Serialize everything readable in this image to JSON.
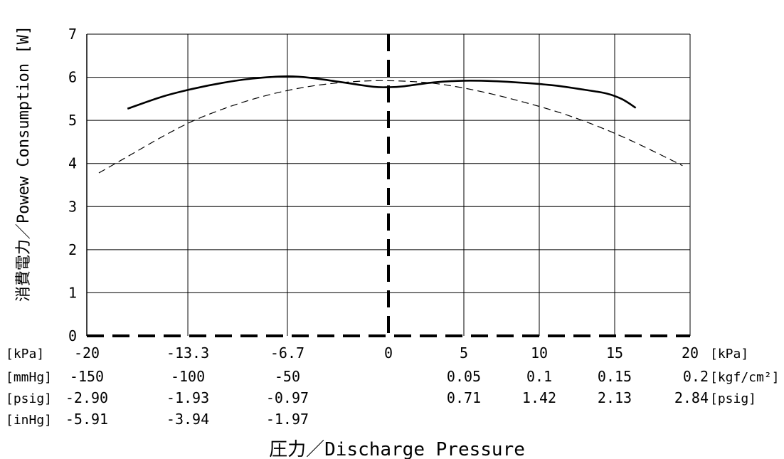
{
  "chart_data": {
    "type": "line",
    "title": "",
    "ylabel": "消費電力／Powew Consumption [W]",
    "xlabel": "圧力／Discharge Pressure",
    "ylim": [
      0,
      7
    ],
    "y_ticks": [
      "0",
      "1",
      "2",
      "3",
      "4",
      "5",
      "6",
      "7"
    ],
    "xlim": [
      -20,
      20
    ],
    "grid": true,
    "x_scales": [
      {
        "unit": "[kPa]",
        "ticks": [
          {
            "x": -20,
            "label": "-20"
          },
          {
            "x": -13.3,
            "label": "-13.3"
          },
          {
            "x": -6.7,
            "label": "-6.7"
          },
          {
            "x": 0,
            "label": "0"
          },
          {
            "x": 5,
            "label": "5"
          },
          {
            "x": 10,
            "label": "10"
          },
          {
            "x": 15,
            "label": "15"
          },
          {
            "x": 20,
            "label": "20"
          }
        ],
        "right_unit": "[kPa]"
      },
      {
        "unit": "[mmHg]",
        "ticks": [
          {
            "x": -20,
            "label": "-150"
          },
          {
            "x": -13.3,
            "label": "-100"
          },
          {
            "x": -6.7,
            "label": "-50"
          },
          {
            "x": 5,
            "label": "0.05"
          },
          {
            "x": 10,
            "label": "0.1"
          },
          {
            "x": 15,
            "label": "0.15"
          },
          {
            "x": 20,
            "label": "0.2"
          }
        ],
        "right_unit": "[kgf/cm²]"
      },
      {
        "unit": "[psig]",
        "ticks": [
          {
            "x": -20,
            "label": "-2.90"
          },
          {
            "x": -13.3,
            "label": "-1.93"
          },
          {
            "x": -6.7,
            "label": "-0.97"
          },
          {
            "x": 5,
            "label": "0.71"
          },
          {
            "x": 10,
            "label": "1.42"
          },
          {
            "x": 15,
            "label": "2.13"
          },
          {
            "x": 20,
            "label": "2.84"
          }
        ],
        "right_unit": "[psig]"
      },
      {
        "unit": "[inHg]",
        "ticks": [
          {
            "x": -20,
            "label": "-5.91"
          },
          {
            "x": -13.3,
            "label": "-3.94"
          },
          {
            "x": -6.7,
            "label": "-1.97"
          }
        ],
        "right_unit": ""
      }
    ],
    "series": [
      {
        "style": "solid",
        "color": "#000000",
        "points": [
          [
            -17.3,
            5.27
          ],
          [
            -15,
            5.55
          ],
          [
            -13,
            5.73
          ],
          [
            -11,
            5.87
          ],
          [
            -9,
            5.97
          ],
          [
            -6.7,
            6.02
          ],
          [
            -5,
            5.98
          ],
          [
            -3,
            5.88
          ],
          [
            -1,
            5.78
          ],
          [
            0,
            5.77
          ],
          [
            1,
            5.79
          ],
          [
            3,
            5.88
          ],
          [
            5,
            5.92
          ],
          [
            7,
            5.91
          ],
          [
            9,
            5.87
          ],
          [
            11,
            5.81
          ],
          [
            13,
            5.71
          ],
          [
            14.5,
            5.62
          ],
          [
            15.5,
            5.49
          ],
          [
            16.4,
            5.29
          ]
        ]
      },
      {
        "style": "dashed",
        "color": "#000000",
        "points": [
          [
            -19.2,
            3.78
          ],
          [
            -17,
            4.22
          ],
          [
            -15,
            4.62
          ],
          [
            -13,
            4.98
          ],
          [
            -11,
            5.26
          ],
          [
            -9,
            5.49
          ],
          [
            -7,
            5.67
          ],
          [
            -5,
            5.8
          ],
          [
            -3,
            5.88
          ],
          [
            -1,
            5.92
          ],
          [
            1,
            5.91
          ],
          [
            3,
            5.86
          ],
          [
            5,
            5.75
          ],
          [
            7,
            5.6
          ],
          [
            9,
            5.42
          ],
          [
            11,
            5.22
          ],
          [
            13,
            4.98
          ],
          [
            15,
            4.7
          ],
          [
            17,
            4.38
          ],
          [
            19.5,
            3.95
          ]
        ]
      }
    ]
  }
}
